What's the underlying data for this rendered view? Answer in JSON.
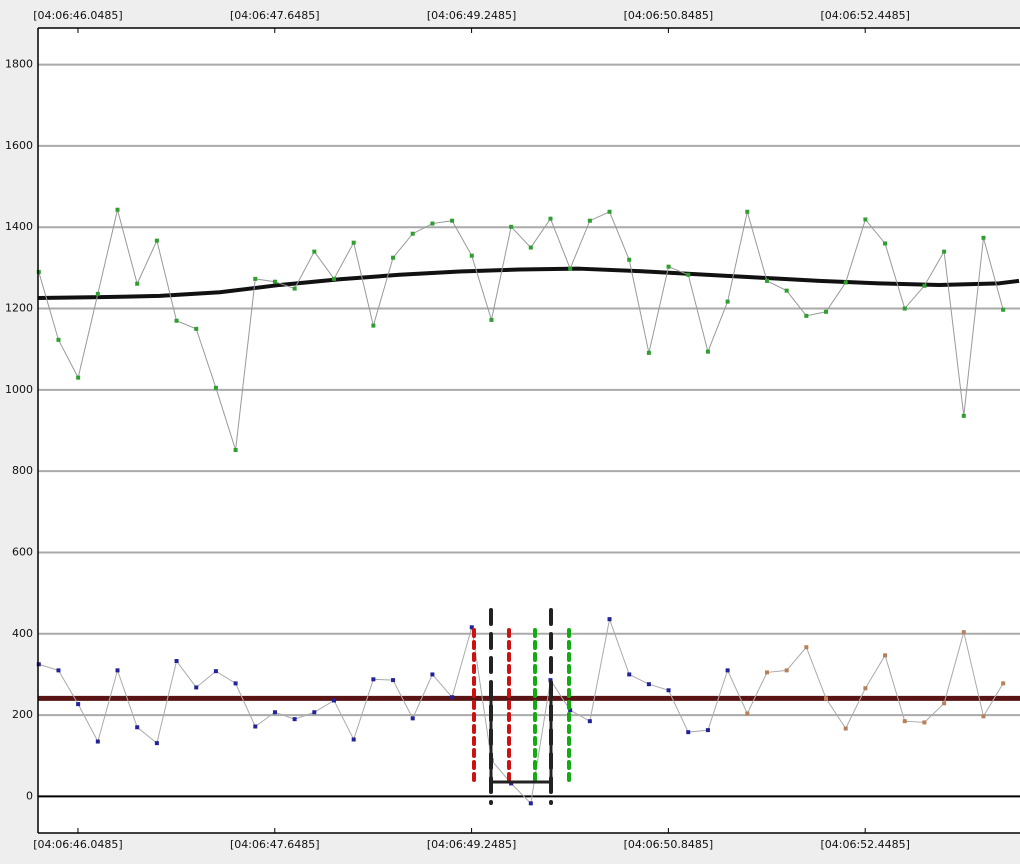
{
  "chart_data": {
    "type": "line",
    "x": [
      45.73,
      45.89,
      46.05,
      46.21,
      46.37,
      46.53,
      46.69,
      46.85,
      47.01,
      47.17,
      47.33,
      47.49,
      47.65,
      47.81,
      47.97,
      48.13,
      48.29,
      48.45,
      48.61,
      48.77,
      48.93,
      49.09,
      49.25,
      49.41,
      49.57,
      49.73,
      49.89,
      50.05,
      50.21,
      50.37,
      50.53,
      50.69,
      50.85,
      51.01,
      51.17,
      51.33,
      51.49,
      51.65,
      51.81,
      51.97,
      52.13,
      52.29,
      52.45,
      52.61,
      52.77,
      52.93,
      53.09,
      53.25,
      53.41,
      53.57
    ],
    "series": [
      {
        "color": "#999999",
        "marker_color": "#2e9e2e",
        "values": [
          1290,
          1123,
          1030,
          1236,
          1443,
          1261,
          1367,
          1170,
          1150,
          1005,
          852,
          1273,
          1266,
          1249,
          1340,
          1273,
          1362,
          1158,
          1325,
          1384,
          1409,
          1416,
          1330,
          1172,
          1401,
          1350,
          1421,
          1298,
          1416,
          1438,
          1320,
          1091,
          1303,
          1283,
          1094,
          1217,
          1438,
          1268,
          1244,
          1182,
          1192,
          1264,
          1419,
          1360,
          1200,
          1256,
          1340,
          936,
          1374,
          1197
        ]
      },
      {
        "color": "#aaaaaa",
        "marker_colors": [
          "#22229a",
          "#22229a",
          "#22229a",
          "#22229a",
          "#22229a",
          "#22229a",
          "#22229a",
          "#22229a",
          "#22229a",
          "#22229a",
          "#22229a",
          "#22229a",
          "#22229a",
          "#22229a",
          "#22229a",
          "#22229a",
          "#22229a",
          "#22229a",
          "#22229a",
          "#22229a",
          "#22229a",
          "#22229a",
          "#22229a",
          "#22229a",
          "#22229a",
          "#22229a",
          "#22229a",
          "#22229a",
          "#22229a",
          "#22229a",
          "#22229a",
          "#22229a",
          "#22229a",
          "#22229a",
          "#22229a",
          "#22229a",
          "#b8805a",
          "#b8805a",
          "#b8805a",
          "#b8805a",
          "#b8805a",
          "#b8805a",
          "#b8805a",
          "#b8805a",
          "#b8805a",
          "#b8805a",
          "#b8805a",
          "#b8805a",
          "#b8805a",
          "#b8805a"
        ],
        "values": [
          325,
          310,
          227,
          135,
          310,
          170,
          131,
          333,
          268,
          308,
          278,
          172,
          207,
          190,
          207,
          236,
          140,
          288,
          286,
          192,
          300,
          244,
          416,
          89,
          32,
          -17,
          286,
          212,
          185,
          436,
          300,
          276,
          261,
          158,
          163,
          310,
          204,
          305,
          310,
          367,
          241,
          167,
          266,
          347,
          185,
          182,
          229,
          404,
          197,
          278
        ]
      }
    ],
    "trend": {
      "color": "#111111",
      "x": [
        45.724,
        46.227,
        46.715,
        47.202,
        47.689,
        48.177,
        48.664,
        49.151,
        49.639,
        50.126,
        50.613,
        51.1,
        51.588,
        52.075,
        52.562,
        53.049,
        53.537,
        53.699
      ],
      "values": [
        1226,
        1228,
        1231,
        1240,
        1258,
        1272,
        1283,
        1291,
        1296,
        1298,
        1292,
        1284,
        1276,
        1268,
        1262,
        1258,
        1262,
        1268
      ]
    },
    "reference_lines": [
      {
        "value": 241,
        "color": "#5a1414"
      }
    ],
    "xlim": [
      45.7236,
      53.707
    ],
    "xticks": [
      {
        "value": 46.0485,
        "label": "[04:06:46.0485]"
      },
      {
        "value": 47.6485,
        "label": "[04:06:47.6485]"
      },
      {
        "value": 49.2485,
        "label": "[04:06:49.2485]"
      },
      {
        "value": 50.8485,
        "label": "[04:06:50.8485]"
      },
      {
        "value": 52.4485,
        "label": "[04:06:52.4485]"
      }
    ],
    "ylim": [
      -90,
      1890
    ],
    "yticks": [
      0,
      200,
      400,
      600,
      800,
      1000,
      1200,
      1400,
      1600,
      1800
    ],
    "grid": true
  }
}
